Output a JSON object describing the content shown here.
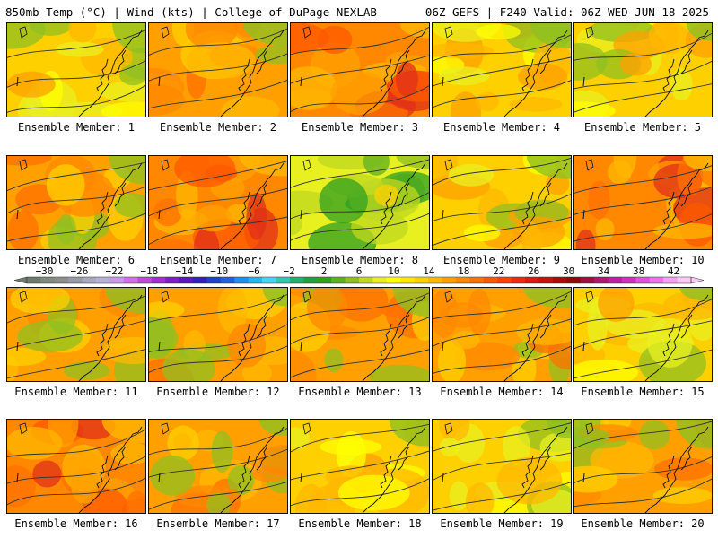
{
  "header": {
    "left_title": "850mb Temp (°C) | Wind (kts) | College of DuPage NEXLAB",
    "right_title": "06Z GEFS | F240 Valid: 06Z WED JUN 18 2025"
  },
  "panels": [
    {
      "label": "Ensemble Member: 1",
      "mood": "yellow"
    },
    {
      "label": "Ensemble Member: 2",
      "mood": "orange"
    },
    {
      "label": "Ensemble Member: 3",
      "mood": "hot"
    },
    {
      "label": "Ensemble Member: 4",
      "mood": "yellow"
    },
    {
      "label": "Ensemble Member: 5",
      "mood": "yellow"
    },
    {
      "label": "Ensemble Member: 6",
      "mood": "orange"
    },
    {
      "label": "Ensemble Member: 7",
      "mood": "hot"
    },
    {
      "label": "Ensemble Member: 8",
      "mood": "green"
    },
    {
      "label": "Ensemble Member: 9",
      "mood": "yellow"
    },
    {
      "label": "Ensemble Member: 10",
      "mood": "hot"
    },
    {
      "label": "Ensemble Member: 11",
      "mood": "orange"
    },
    {
      "label": "Ensemble Member: 12",
      "mood": "orange"
    },
    {
      "label": "Ensemble Member: 13",
      "mood": "orange"
    },
    {
      "label": "Ensemble Member: 14",
      "mood": "orange"
    },
    {
      "label": "Ensemble Member: 15",
      "mood": "yellow"
    },
    {
      "label": "Ensemble Member: 16",
      "mood": "hot"
    },
    {
      "label": "Ensemble Member: 17",
      "mood": "orange"
    },
    {
      "label": "Ensemble Member: 18",
      "mood": "yellow"
    },
    {
      "label": "Ensemble Member: 19",
      "mood": "yellow"
    },
    {
      "label": "Ensemble Member: 20",
      "mood": "orange"
    }
  ],
  "colorbar": {
    "labels": [
      "−30",
      "−26",
      "−22",
      "−18",
      "−14",
      "−10",
      "−6",
      "−2",
      "2",
      "6",
      "10",
      "14",
      "18",
      "22",
      "26",
      "30",
      "34",
      "38",
      "42"
    ],
    "min": -32,
    "max": 44,
    "colors": [
      "#6e7a6e",
      "#808a80",
      "#8e8e8e",
      "#9a9aa6",
      "#a8a8c0",
      "#b6b0d8",
      "#c89ae6",
      "#d070e8",
      "#c04ad8",
      "#a030d0",
      "#7a20c8",
      "#5a18c0",
      "#3020c0",
      "#2040d0",
      "#2060e0",
      "#2090f0",
      "#20b8f0",
      "#40d8f0",
      "#30c8b0",
      "#20b070",
      "#20a040",
      "#30a020",
      "#60b020",
      "#90c020",
      "#c0d820",
      "#e8f020",
      "#ffff00",
      "#ffe800",
      "#ffd000",
      "#ffb800",
      "#ffa000",
      "#ff8800",
      "#ff7000",
      "#ff5800",
      "#ff4000",
      "#f02810",
      "#e01818",
      "#c81010",
      "#b00808",
      "#900808",
      "#a01040",
      "#b01870",
      "#c020a0",
      "#d030c0",
      "#e050d8",
      "#f070e8",
      "#f8a0f0",
      "#fcc8f8"
    ]
  }
}
